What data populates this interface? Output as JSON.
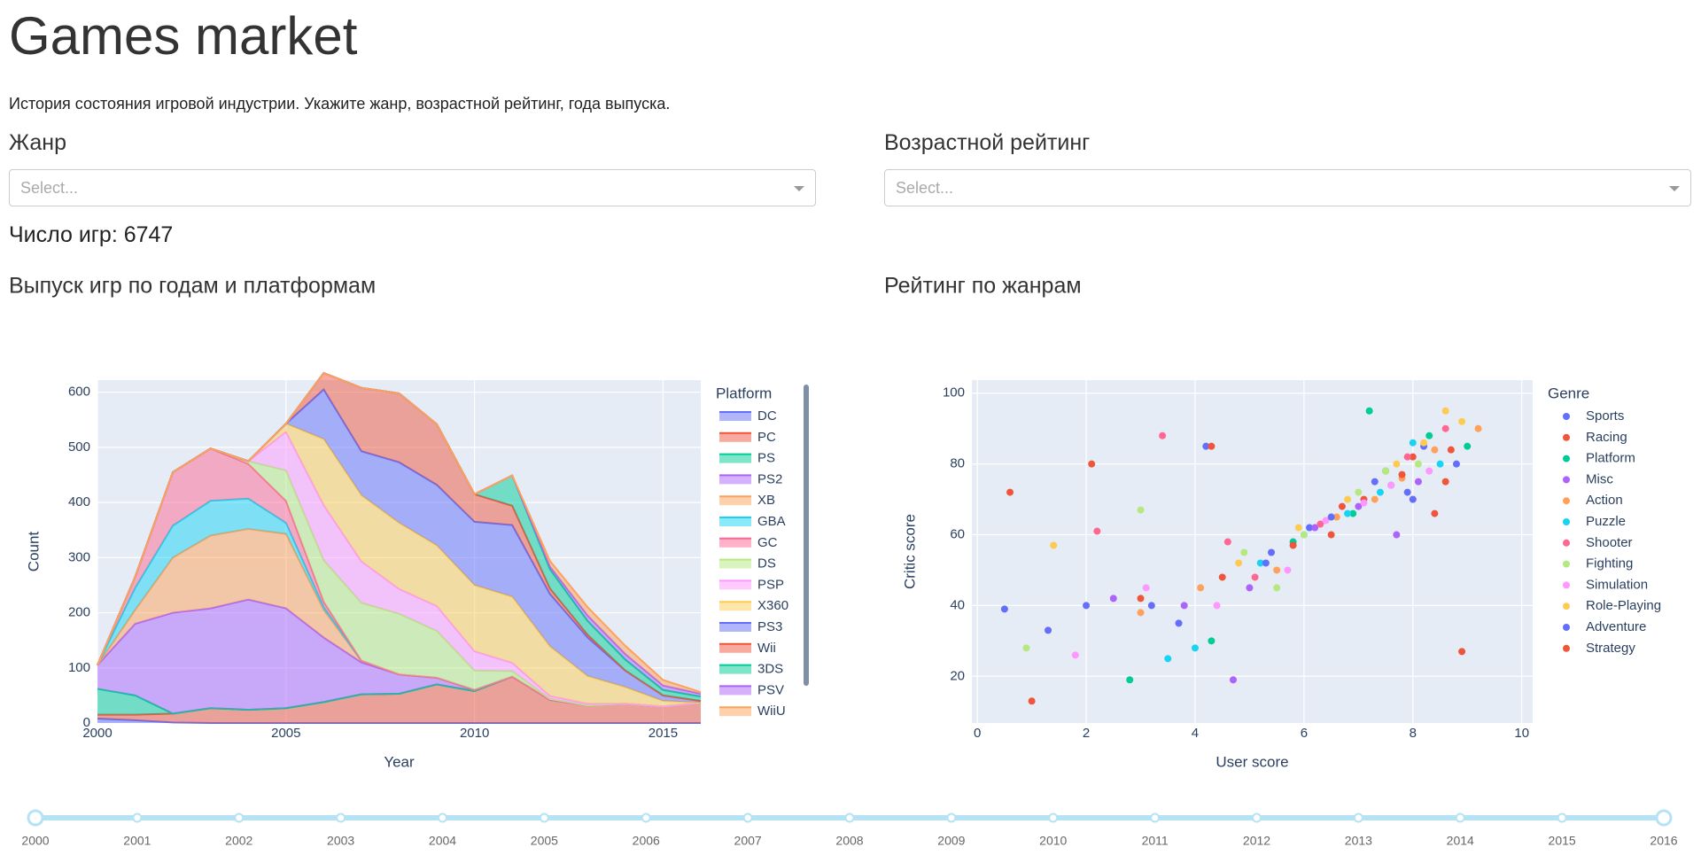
{
  "header": {
    "title": "Games market",
    "description": "История состояния игровой индустрии. Укажите жанр, возрастной рейтинг, года выпуска."
  },
  "filters": [
    {
      "label": "Жанр",
      "placeholder": "Select..."
    },
    {
      "label": "Возрастной рейтинг",
      "placeholder": "Select..."
    }
  ],
  "summary": "Число игр: 6747",
  "chart_data": [
    {
      "type": "area",
      "title": "Выпуск игр по годам и платформам",
      "x_label": "Year",
      "y_label": "Count",
      "legend_title": "Platform",
      "x": [
        2000,
        2001,
        2002,
        2003,
        2004,
        2005,
        2006,
        2007,
        2008,
        2009,
        2010,
        2011,
        2012,
        2013,
        2014,
        2015,
        2016
      ],
      "xlim": [
        2000,
        2016
      ],
      "xticks": [
        2000,
        2005,
        2010,
        2015
      ],
      "ylim": [
        0,
        622
      ],
      "yticks": [
        0,
        100,
        200,
        300,
        400,
        500,
        600
      ],
      "grid": true,
      "stacked": true,
      "series": [
        {
          "name": "DC",
          "color": "#636efa",
          "values": [
            8,
            5,
            1,
            0,
            0,
            0,
            0,
            0,
            0,
            0,
            0,
            0,
            0,
            0,
            0,
            0,
            0
          ]
        },
        {
          "name": "PC",
          "color": "#EF553B",
          "values": [
            7,
            10,
            16,
            27,
            24,
            27,
            38,
            52,
            53,
            70,
            58,
            84,
            42,
            32,
            35,
            30,
            37
          ]
        },
        {
          "name": "PS",
          "color": "#00cc96",
          "values": [
            47,
            35,
            0,
            0,
            0,
            0,
            0,
            0,
            0,
            0,
            0,
            0,
            0,
            0,
            0,
            0,
            0
          ]
        },
        {
          "name": "PS2",
          "color": "#ab63fa",
          "values": [
            43,
            130,
            183,
            181,
            200,
            181,
            117,
            58,
            35,
            12,
            2,
            0,
            0,
            0,
            0,
            0,
            0
          ]
        },
        {
          "name": "XB",
          "color": "#FFA15A",
          "values": [
            0,
            25,
            100,
            132,
            128,
            135,
            50,
            3,
            0,
            0,
            0,
            0,
            0,
            0,
            0,
            0,
            0
          ]
        },
        {
          "name": "GBA",
          "color": "#19d3f3",
          "values": [
            0,
            40,
            58,
            63,
            55,
            20,
            5,
            0,
            0,
            0,
            0,
            0,
            0,
            0,
            0,
            0,
            0
          ]
        },
        {
          "name": "GC",
          "color": "#FF6692",
          "values": [
            0,
            20,
            97,
            95,
            63,
            40,
            10,
            0,
            0,
            0,
            0,
            0,
            0,
            0,
            0,
            0,
            0
          ]
        },
        {
          "name": "DS",
          "color": "#B6E880",
          "values": [
            0,
            0,
            0,
            0,
            5,
            55,
            75,
            105,
            110,
            85,
            35,
            10,
            2,
            0,
            0,
            0,
            0
          ]
        },
        {
          "name": "PSP",
          "color": "#FF97FF",
          "values": [
            0,
            0,
            0,
            0,
            0,
            70,
            100,
            75,
            45,
            45,
            35,
            15,
            5,
            3,
            0,
            0,
            0
          ]
        },
        {
          "name": "X360",
          "color": "#FECB52",
          "values": [
            0,
            0,
            0,
            0,
            0,
            15,
            120,
            120,
            120,
            110,
            120,
            120,
            90,
            50,
            30,
            10,
            0
          ]
        },
        {
          "name": "PS3",
          "color": "#636efa",
          "values": [
            0,
            0,
            0,
            0,
            0,
            0,
            90,
            80,
            110,
            110,
            115,
            130,
            95,
            70,
            30,
            10,
            3
          ]
        },
        {
          "name": "Wii",
          "color": "#EF553B",
          "values": [
            0,
            0,
            0,
            0,
            0,
            0,
            30,
            115,
            125,
            110,
            50,
            35,
            10,
            5,
            0,
            0,
            0
          ]
        },
        {
          "name": "3DS",
          "color": "#00cc96",
          "values": [
            0,
            0,
            0,
            0,
            0,
            0,
            0,
            0,
            0,
            0,
            0,
            55,
            35,
            25,
            20,
            10,
            8
          ]
        },
        {
          "name": "PSV",
          "color": "#ab63fa",
          "values": [
            0,
            0,
            0,
            0,
            0,
            0,
            0,
            0,
            0,
            0,
            0,
            0,
            5,
            10,
            10,
            8,
            5
          ]
        },
        {
          "name": "WiiU",
          "color": "#FFA15A",
          "values": [
            0,
            0,
            0,
            0,
            0,
            0,
            0,
            0,
            0,
            0,
            0,
            0,
            10,
            15,
            15,
            10,
            3
          ]
        }
      ]
    },
    {
      "type": "scatter",
      "title": "Рейтинг по жанрам",
      "x_label": "User score",
      "y_label": "Critic score",
      "legend_title": "Genre",
      "xlim": [
        -0.1,
        10.2
      ],
      "xticks": [
        0,
        2,
        4,
        6,
        8,
        10
      ],
      "ylim": [
        6.8,
        103.7
      ],
      "yticks": [
        20,
        40,
        60,
        80,
        100
      ],
      "grid": true,
      "series": [
        {
          "name": "Sports",
          "color": "#636efa",
          "x": [
            7.5,
            8.2,
            6.1,
            8.8,
            5.4,
            7.9,
            3.2,
            0.5
          ],
          "y": [
            78,
            85,
            62,
            80,
            55,
            72,
            40,
            39
          ]
        },
        {
          "name": "Racing",
          "color": "#EF553B",
          "x": [
            8.0,
            7.1,
            6.5,
            8.6,
            4.5,
            0.6,
            2.1,
            8.9
          ],
          "y": [
            82,
            70,
            60,
            75,
            48,
            72,
            80,
            27
          ]
        },
        {
          "name": "Platform",
          "color": "#00cc96",
          "x": [
            8.3,
            7.6,
            5.8,
            9.0,
            6.9,
            2.8,
            4.3,
            7.2
          ],
          "y": [
            88,
            74,
            58,
            85,
            66,
            19,
            30,
            95
          ]
        },
        {
          "name": "Misc",
          "color": "#ab63fa",
          "x": [
            7.0,
            6.2,
            5.0,
            8.1,
            3.8,
            2.5,
            4.7,
            7.7
          ],
          "y": [
            68,
            62,
            45,
            75,
            40,
            42,
            19,
            60
          ]
        },
        {
          "name": "Action",
          "color": "#FFA15A",
          "x": [
            7.8,
            8.4,
            6.6,
            7.3,
            5.5,
            4.1,
            3.0,
            9.2
          ],
          "y": [
            76,
            84,
            65,
            70,
            50,
            45,
            38,
            90
          ]
        },
        {
          "name": "Puzzle",
          "color": "#19d3f3",
          "x": [
            7.4,
            6.0,
            8.5,
            5.2,
            3.5,
            6.8,
            8.0,
            4.0
          ],
          "y": [
            72,
            60,
            80,
            52,
            25,
            66,
            86,
            28
          ]
        },
        {
          "name": "Shooter",
          "color": "#FF6692",
          "x": [
            8.6,
            7.9,
            6.3,
            5.1,
            3.4,
            8.0,
            4.6,
            2.2
          ],
          "y": [
            90,
            82,
            63,
            48,
            88,
            70,
            58,
            61
          ]
        },
        {
          "name": "Fighting",
          "color": "#B6E880",
          "x": [
            8.1,
            7.0,
            6.0,
            4.9,
            0.9,
            3.0,
            7.5,
            5.5
          ],
          "y": [
            80,
            72,
            60,
            55,
            28,
            67,
            78,
            45
          ]
        },
        {
          "name": "Simulation",
          "color": "#FF97FF",
          "x": [
            7.6,
            6.4,
            5.7,
            8.3,
            3.1,
            4.4,
            7.1,
            1.8
          ],
          "y": [
            74,
            64,
            50,
            78,
            45,
            40,
            69,
            26
          ]
        },
        {
          "name": "Role-Playing",
          "color": "#FECB52",
          "x": [
            8.9,
            8.2,
            7.7,
            6.8,
            5.9,
            8.6,
            4.8,
            1.4
          ],
          "y": [
            92,
            86,
            80,
            70,
            62,
            95,
            52,
            57
          ]
        },
        {
          "name": "Adventure",
          "color": "#636efa",
          "x": [
            7.3,
            6.5,
            5.3,
            8.0,
            4.2,
            2.0,
            3.7,
            1.3
          ],
          "y": [
            75,
            65,
            52,
            70,
            85,
            40,
            35,
            33
          ]
        },
        {
          "name": "Strategy",
          "color": "#EF553B",
          "x": [
            8.7,
            7.8,
            6.7,
            5.8,
            8.4,
            4.3,
            1.0,
            3.0
          ],
          "y": [
            84,
            77,
            68,
            57,
            66,
            85,
            13,
            42
          ]
        }
      ]
    }
  ],
  "slider": {
    "min": 2000,
    "max": 2016,
    "value": [
      2000,
      2016
    ],
    "marks": [
      2000,
      2001,
      2002,
      2003,
      2004,
      2005,
      2006,
      2007,
      2008,
      2009,
      2010,
      2011,
      2012,
      2013,
      2014,
      2015,
      2016
    ]
  }
}
